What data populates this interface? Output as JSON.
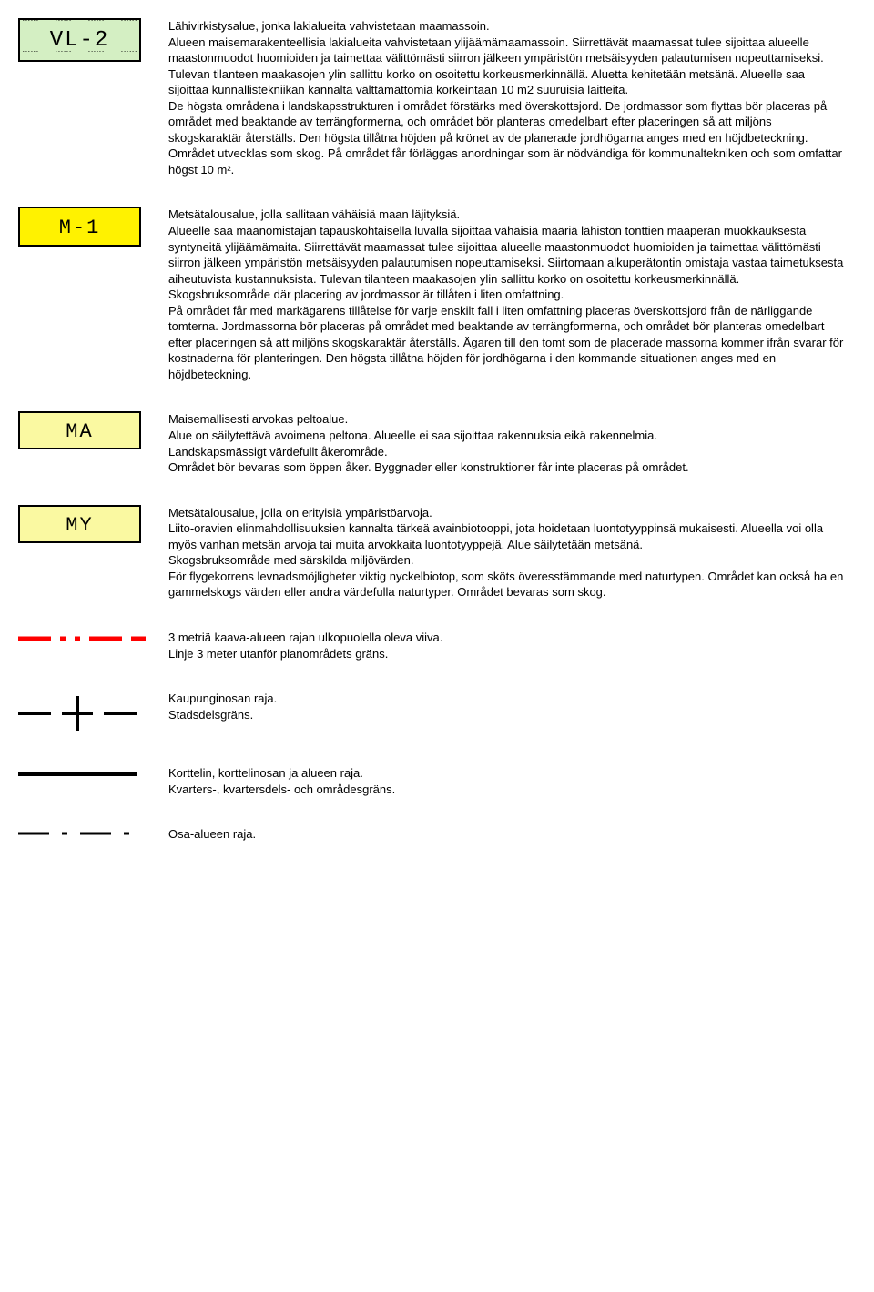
{
  "entries": {
    "vl2": {
      "code": "VL-2",
      "text": "Lähivirkistysalue, jonka lakialueita vahvistetaan maamassoin.\nAlueen maisemarakenteellisia lakialueita vahvistetaan ylijäämämaamassoin. Siirrettävät maamassat tulee sijoittaa alueelle maastonmuodot huomioiden ja taimettaa välittömästi siirron jälkeen ympäristön metsäisyyden palautumisen nopeuttamiseksi. Tulevan tilanteen maakasojen ylin sallittu korko on osoitettu korkeusmerkinnällä. Aluetta kehitetään metsänä. Alueelle saa sijoittaa kunnallistekniikan kannalta välttämättömiä korkeintaan 10 m2 suuruisia laitteita.\nDe högsta områdena i landskapsstrukturen i området  förstärks med överskottsjord. De jordmassor som flyttas bör placeras på området med beaktande av terrängformerna, och området bör planteras omedelbart efter placeringen så att miljöns skogskaraktär återställs. Den högsta tillåtna höjden på krönet av de planerade jordhögarna anges med en höjdbeteckning. Området utvecklas som skog. På området får förläggas anordningar som är nödvändiga för kommunaltekniken och som omfattar högst 10 m²."
    },
    "m1": {
      "code": "M-1",
      "text": "Metsätalousalue, jolla sallitaan vähäisiä maan läjityksiä.\nAlueelle saa maanomistajan tapauskohtaisella luvalla sijoittaa vähäisiä määriä lähistön tonttien maaperän muokkauksesta syntyneitä ylijäämämaita. Siirrettävät maamassat tulee sijoittaa alueelle maastonmuodot huomioiden ja taimettaa välittömästi siirron jälkeen ympäristön metsäisyyden palautumisen nopeuttamiseksi. Siirtomaan alkuperätontin omistaja vastaa taimetuksesta aiheutuvista kustannuksista. Tulevan tilanteen maakasojen ylin sallittu korko on osoitettu korkeusmerkinnällä.\nSkogsbruksområde där placering av jordmassor är tillåten i liten omfattning.\nPå området får med markägarens tillåtelse för varje enskilt fall i liten omfattning placeras överskottsjord från de närliggande tomterna. Jordmassorna bör placeras på området med beaktande av terrängformerna, och området bör planteras omedelbart efter placeringen så att miljöns skogskaraktär återställs. Ägaren till den tomt som de placerade massorna kommer ifrån svarar för kostnaderna för planteringen.  Den högsta tillåtna höjden för jordhögarna i den kommande situationen anges med en höjdbeteckning."
    },
    "ma": {
      "code": "MA",
      "text": "Maisemallisesti arvokas peltoalue.\nAlue on säilytettävä avoimena peltona. Alueelle ei saa sijoittaa rakennuksia eikä rakennelmia.\nLandskapsmässigt värdefullt åkerområde.\nOmrådet bör bevaras som öppen åker. Byggnader eller konstruktioner får inte placeras på området."
    },
    "my": {
      "code": "MY",
      "text": "Metsätalousalue, jolla on erityisiä ympäristöarvoja.\nLiito-oravien elinmahdollisuuksien kannalta tärkeä avainbiotooppi, jota hoidetaan luontotyyppinsä mukaisesti.  Alueella voi olla myös vanhan metsän arvoja tai muita arvokkaita luontotyyppejä.  Alue säilytetään metsänä.\nSkogsbruksområde med särskilda miljövärden.\nFör flygekorrens levnadsmöjligheter viktig nyckelbiotop, som sköts överesstämmande med naturtypen. Området kan också ha en gammelskogs värden eller andra värdefulla naturtyper. Området bevaras som skog."
    },
    "redline": {
      "text": "3 metriä kaava-alueen rajan ulkopuolella oleva viiva.\nLinje 3 meter utanför planområdets gräns."
    },
    "dashcross": {
      "text": "Kaupunginosan raja.\nStadsdelsgräns."
    },
    "solidline": {
      "text": "Korttelin, korttelinosan ja alueen raja.\nKvarters-, kvartersdels- och områdesgräns."
    },
    "dashdot": {
      "text": "Osa-alueen raja."
    }
  },
  "style": {
    "colors": {
      "vl_bg": "#d4efc3",
      "m_bg": "#fff200",
      "ma_bg": "#faf9a1",
      "red": "#ff0000",
      "black": "#000000"
    }
  }
}
